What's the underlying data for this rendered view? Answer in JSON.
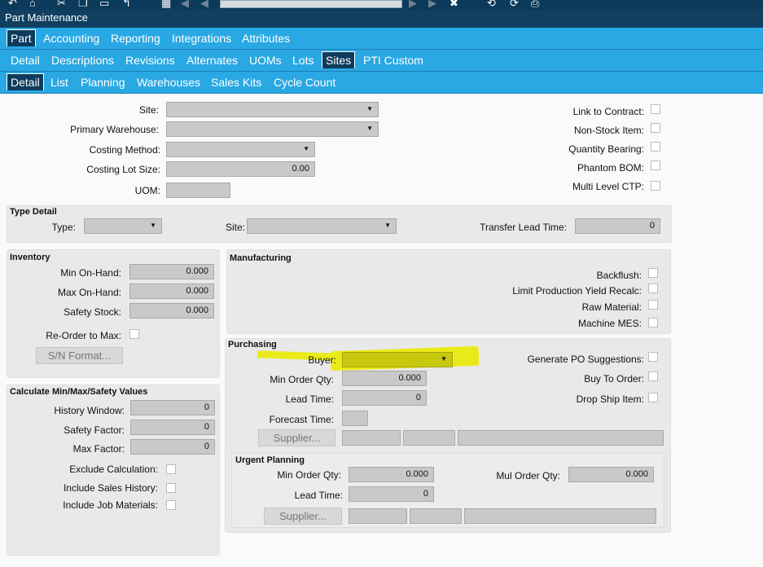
{
  "window": {
    "title": "Part Maintenance"
  },
  "toolbar": {
    "icons": [
      "undo-icon",
      "tag-icon",
      "cut-icon",
      "copy-icon",
      "paste-icon",
      "grid-icon",
      "first-icon",
      "prev-icon",
      "next-icon",
      "last-icon",
      "delete-icon",
      "refresh-icon",
      "attach-icon",
      "print-icon"
    ]
  },
  "tabs_level1": {
    "items": [
      "Part",
      "Accounting",
      "Reporting",
      "Integrations",
      "Attributes"
    ],
    "active": "Part"
  },
  "tabs_level2": {
    "items": [
      "Detail",
      "Descriptions",
      "Revisions",
      "Alternates",
      "UOMs",
      "Lots",
      "Sites",
      "PTI Custom"
    ],
    "active": "Sites"
  },
  "tabs_level3": {
    "items": [
      "Detail",
      "List",
      "Planning",
      "Warehouses",
      "Sales Kits",
      "Cycle Count"
    ],
    "active": "Detail"
  },
  "header": {
    "site_label": "Site:",
    "primary_warehouse_label": "Primary Warehouse:",
    "costing_method_label": "Costing Method:",
    "costing_lot_size_label": "Costing Lot Size:",
    "costing_lot_size_value": "0.00",
    "uom_label": "UOM:",
    "link_to_contract": "Link to Contract:",
    "non_stock_item": "Non-Stock Item:",
    "quantity_bearing": "Quantity Bearing:",
    "phantom_bom": "Phantom BOM:",
    "multi_level_ctp": "Multi Level CTP:"
  },
  "type_detail": {
    "title": "Type Detail",
    "type_label": "Type:",
    "site_label": "Site:",
    "transfer_lead_time_label": "Transfer Lead Time:",
    "transfer_lead_time_value": "0"
  },
  "inventory": {
    "title": "Inventory",
    "min_on_hand_label": "Min On-Hand:",
    "min_on_hand": "0.000",
    "max_on_hand_label": "Max On-Hand:",
    "max_on_hand": "0.000",
    "safety_stock_label": "Safety Stock:",
    "safety_stock": "0.000",
    "reorder_label": "Re-Order to Max:",
    "sn_format_button": "S/N Format..."
  },
  "manufacturing": {
    "title": "Manufacturing",
    "backflush": "Backflush:",
    "limit_yield": "Limit Production Yield Recalc:",
    "raw_material": "Raw Material:",
    "machine_mes": "Machine MES:"
  },
  "purchasing": {
    "title": "Purchasing",
    "buyer_label": "Buyer:",
    "min_order_qty_label": "Min Order Qty:",
    "min_order_qty": "0.000",
    "lead_time_label": "Lead Time:",
    "lead_time": "0",
    "forecast_time_label": "Forecast Time:",
    "supplier_button": "Supplier...",
    "generate_po": "Generate PO Suggestions:",
    "buy_to_order": "Buy To Order:",
    "drop_ship": "Drop Ship Item:",
    "highlight_color": "#eaea1a"
  },
  "calc": {
    "title": "Calculate Min/Max/Safety Values",
    "history_window_label": "History Window:",
    "history_window": "0",
    "safety_factor_label": "Safety Factor:",
    "safety_factor": "0",
    "max_factor_label": "Max Factor:",
    "max_factor": "0",
    "exclude_calc": "Exclude Calculation:",
    "include_sales": "Include Sales History:",
    "include_job": "Include Job Materials:"
  },
  "urgent": {
    "title": "Urgent Planning",
    "min_order_qty_label": "Min Order Qty:",
    "min_order_qty": "0.000",
    "mul_order_qty_label": "Mul Order Qty:",
    "mul_order_qty": "0.000",
    "lead_time_label": "Lead Time:",
    "lead_time": "0",
    "supplier_button": "Supplier..."
  }
}
